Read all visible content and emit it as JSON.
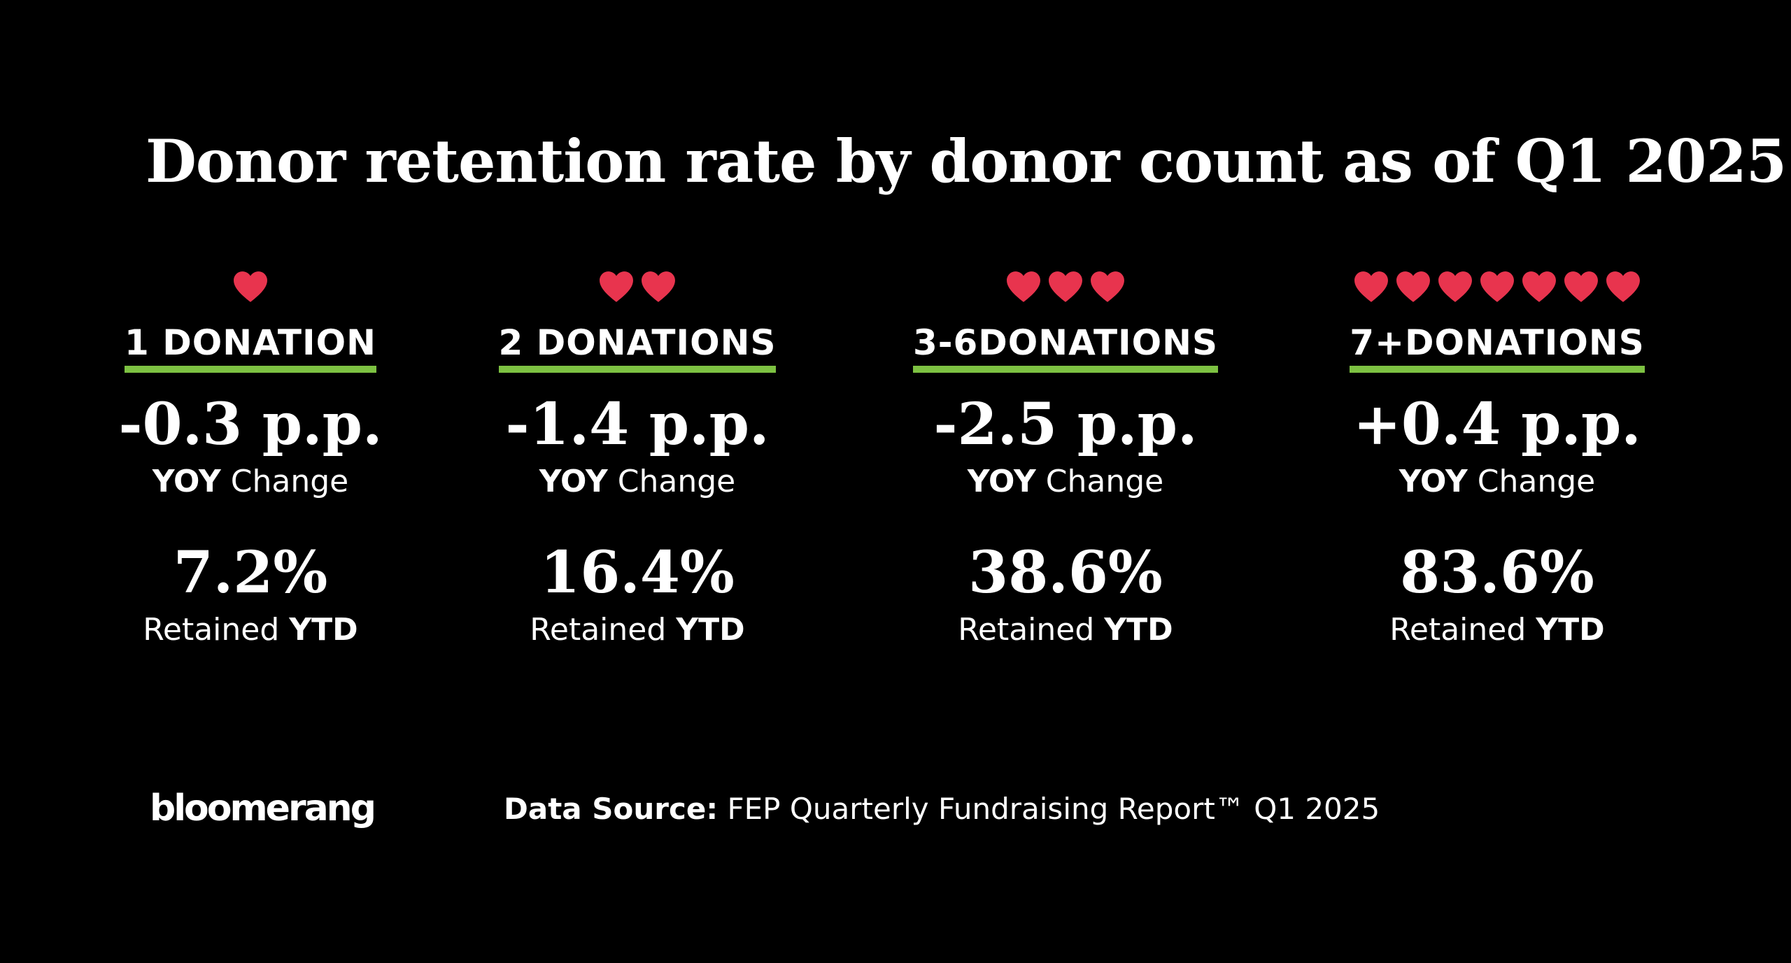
{
  "title": "Donor retention rate by donor count as of Q1 2025",
  "colors": {
    "background": "#000000",
    "heart": "#e8344e",
    "underline": "#7dc142",
    "text": "#ffffff"
  },
  "columns": [
    {
      "hearts": 1,
      "label": "1 DONATION",
      "change": "-0.3 p.p.",
      "change_caption_bold": "YOY",
      "change_caption_rest": " Change",
      "retained": "7.2%",
      "retained_caption_rest": "Retained ",
      "retained_caption_bold": "YTD"
    },
    {
      "hearts": 2,
      "label": "2 DONATIONS",
      "change": "-1.4 p.p.",
      "change_caption_bold": "YOY",
      "change_caption_rest": " Change",
      "retained": "16.4%",
      "retained_caption_rest": "Retained ",
      "retained_caption_bold": "YTD"
    },
    {
      "hearts": 3,
      "label": "3-6DONATIONS",
      "change": "-2.5 p.p.",
      "change_caption_bold": "YOY",
      "change_caption_rest": " Change",
      "retained": "38.6%",
      "retained_caption_rest": "Retained ",
      "retained_caption_bold": "YTD"
    },
    {
      "hearts": 7,
      "label": "7+DONATIONS",
      "change": "+0.4 p.p.",
      "change_caption_bold": "YOY",
      "change_caption_rest": " Change",
      "retained": "83.6%",
      "retained_caption_rest": "Retained ",
      "retained_caption_bold": "YTD"
    }
  ],
  "logo": "bloomerang",
  "source": {
    "label": "Data Source:",
    "text": " FEP Quarterly Fundraising Report™ Q1 2025"
  }
}
